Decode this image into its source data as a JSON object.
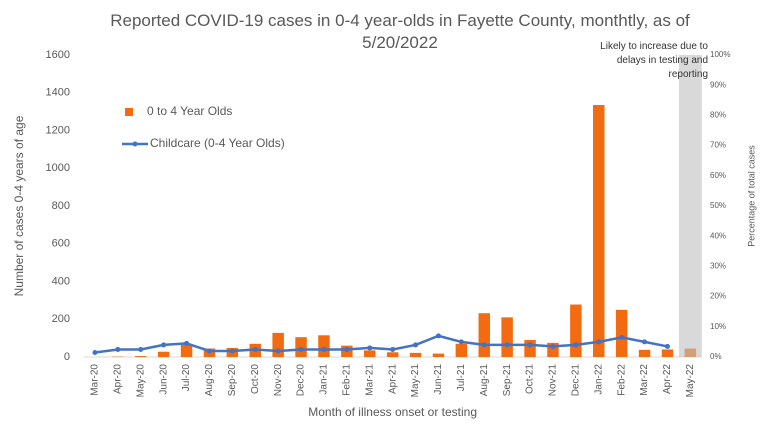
{
  "chart_data": {
    "type": "bar_line",
    "title": "Reported COVID-19 cases in 0-4 year-olds in Fayette County, monthtly, as of 5/20/2022",
    "annotation": "Likely to increase due to delays in testing and reporting",
    "x_label": "Month of illness onset or testing",
    "y_label": "Number of cases 0-4 years of age",
    "y2_label": "Percentage of total cases",
    "categories": [
      "Mar-20",
      "Apr-20",
      "May-20",
      "Jun-20",
      "Jul-20",
      "Aug-20",
      "Sep-20",
      "Oct-20",
      "Nov-20",
      "Dec-20",
      "Jan-21",
      "Feb-21",
      "Mar-21",
      "Apr-21",
      "May-21",
      "Jun-21",
      "Jul-21",
      "Aug-21",
      "Sep-21",
      "Oct-21",
      "Nov-21",
      "Dec-21",
      "Jan-22",
      "Feb-22",
      "Mar-22",
      "Apr-22",
      "May-22"
    ],
    "series": [
      {
        "name": "0 to 4 Year Olds",
        "color": "#f26b10",
        "kind": "bar",
        "values": [
          0,
          2,
          5,
          28,
          65,
          45,
          48,
          70,
          128,
          105,
          115,
          60,
          35,
          25,
          22,
          18,
          70,
          232,
          210,
          90,
          75,
          278,
          1335,
          250,
          38,
          40,
          45
        ]
      },
      {
        "name": "Childcare (0-4 Year Olds)",
        "color": "#4472c4",
        "kind": "line",
        "axis": "y2",
        "values": [
          1.5,
          2.5,
          2.5,
          4,
          4.5,
          2,
          2,
          2.5,
          2,
          2.5,
          2.5,
          2.5,
          3,
          2.5,
          4,
          7,
          5,
          4,
          4,
          4,
          3.5,
          4,
          5,
          6.5,
          5,
          3.5,
          null
        ]
      }
    ],
    "ylim": [
      0,
      1600
    ],
    "yticks": [
      0,
      200,
      400,
      600,
      800,
      1000,
      1200,
      1400,
      1600
    ],
    "y2lim": [
      0,
      100
    ],
    "y2ticks": [
      {
        "value": 0,
        "label": "0%"
      },
      {
        "value": 10,
        "label": "10%"
      },
      {
        "value": 20,
        "label": "20%"
      },
      {
        "value": 30,
        "label": "30%"
      },
      {
        "value": 40,
        "label": "40%"
      },
      {
        "value": 50,
        "label": "50%"
      },
      {
        "value": 60,
        "label": "60%"
      },
      {
        "value": 70,
        "label": "70%"
      },
      {
        "value": 80,
        "label": "80%"
      },
      {
        "value": 90,
        "label": "90%"
      },
      {
        "value": 100,
        "label": "100%"
      }
    ],
    "grid": false
  }
}
